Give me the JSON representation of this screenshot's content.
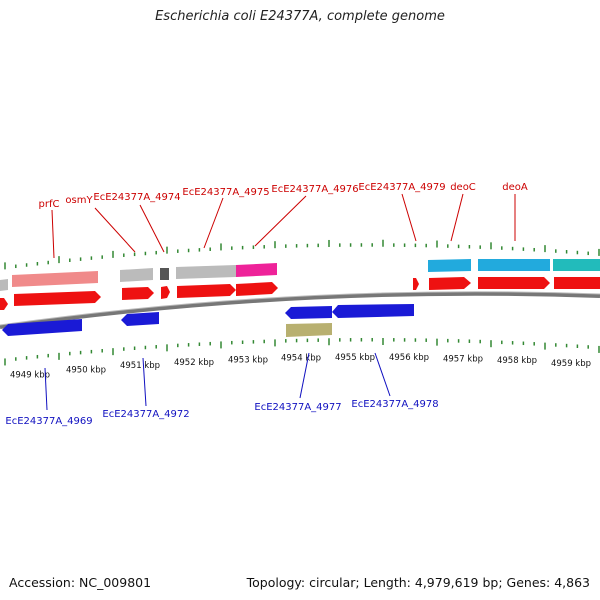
{
  "header": {
    "title": "Escherichia coli E24377A, complete genome"
  },
  "footer": {
    "accession": "Accession: NC_009801",
    "topology": "Topology: circular; Length: 4,979,619 bp; Genes: 4,863"
  },
  "colors": {
    "forward_gene": "#ee1111",
    "reverse_gene": "#1a1ad6",
    "cds_grey": "#bbbbbb",
    "cds_pink": "#f08a8a",
    "cds_magenta": "#ee2299",
    "cds_cyan": "#22aadd",
    "cds_teal": "#22bbbb",
    "cds_olive": "#b8b070",
    "tick_green": "#338833",
    "backbone": "#888888"
  },
  "scale": {
    "labels": [
      "4949 kbp",
      "4950 kbp",
      "4951 kbp",
      "4952 kbp",
      "4953 kbp",
      "4954 kbp",
      "4955 kbp",
      "4956 kbp",
      "4957 kbp",
      "4958 kbp",
      "4959 kbp"
    ]
  },
  "top_labels": [
    "prfC",
    "osmY",
    "EcE24377A_4974",
    "EcE24377A_4975",
    "EcE24377A_4976",
    "EcE24377A_4979",
    "deoC",
    "deoA"
  ],
  "bottom_labels": [
    "EcE24377A_4969",
    "EcE24377A_4972",
    "EcE24377A_4977",
    "EcE24377A_4978"
  ]
}
